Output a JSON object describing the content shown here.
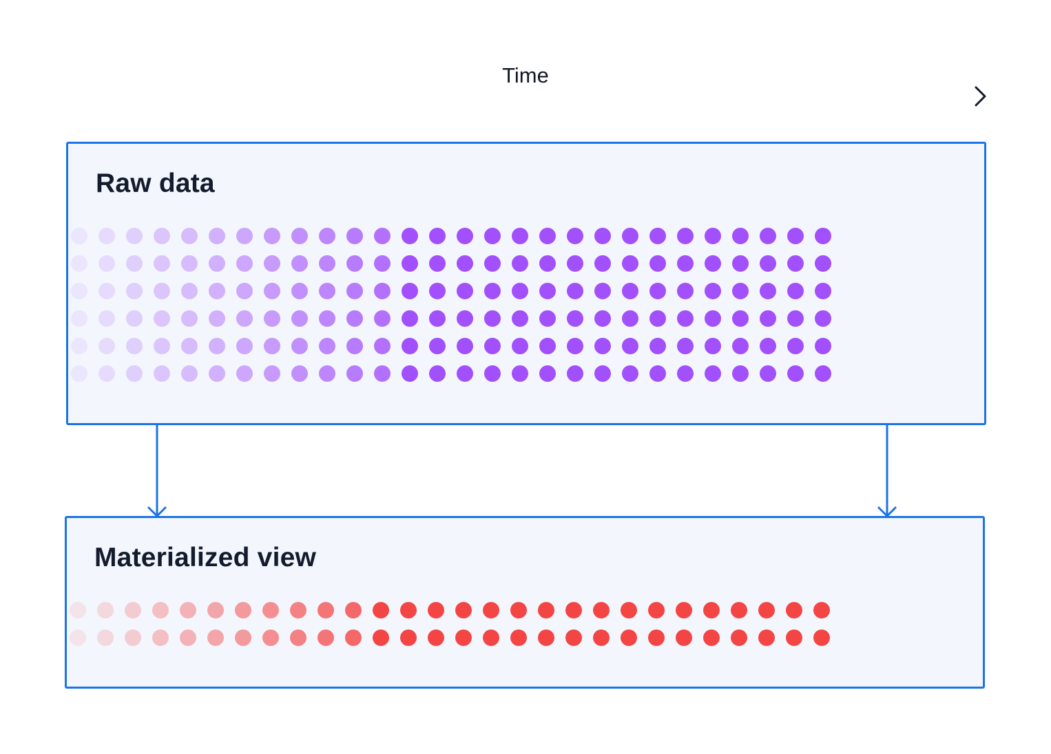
{
  "time_axis": {
    "label": "Time",
    "color": "#111827"
  },
  "raw_data": {
    "title": "Raw data",
    "rows": 6,
    "cols": 28,
    "dot_color": "#a24ffc",
    "fade_cols": 12
  },
  "materialized_view": {
    "title": "Materialized view",
    "rows": 2,
    "cols": 28,
    "dot_color": "#f44545",
    "fade_cols": 11
  },
  "colors": {
    "border": "#1a73e8",
    "box_background": "#f3f6fd"
  }
}
